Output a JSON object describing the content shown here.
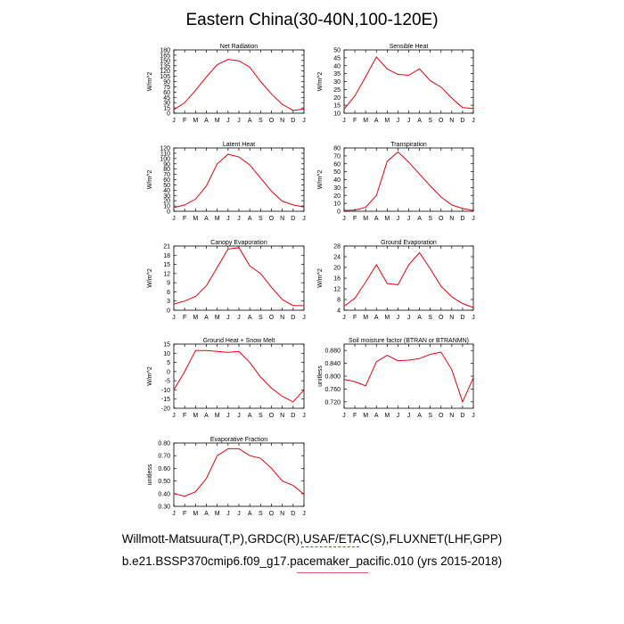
{
  "title": "Eastern China(30-40N,100-120E)",
  "footer": {
    "line1": "Willmott-Matsuura(T,P),GRDC(R),USAF/ETAC(S),FLUXNET(LHF,GPP)",
    "line2": "b.e21.BSSP370cmip6.f09_g17.pacemaker_pacific.010 (yrs 2015-2018)"
  },
  "colors": {
    "line": "#e8000b",
    "axis": "#000000",
    "underline1": "#3a4fd6",
    "underline2": "#e05a6a"
  },
  "chart_data": [
    {
      "type": "line",
      "title": "Net Radiation",
      "ylabel": "W/m^2",
      "categories": [
        "J",
        "F",
        "M",
        "A",
        "M",
        "J",
        "J",
        "A",
        "S",
        "O",
        "N",
        "D",
        "J"
      ],
      "ylim": [
        0,
        180
      ],
      "yticks": [
        0,
        15,
        30,
        45,
        60,
        75,
        90,
        105,
        120,
        135,
        150,
        165,
        180
      ],
      "yticklabels": [
        "0",
        "15",
        "30",
        "45",
        "60",
        "75",
        "90",
        "105",
        "120",
        "135",
        "150",
        "165",
        "180"
      ],
      "values": [
        10,
        30,
        65,
        103,
        138,
        153,
        149,
        131,
        90,
        55,
        25,
        8,
        12
      ]
    },
    {
      "type": "line",
      "title": "Sensible Heat",
      "ylabel": "W/m^2",
      "categories": [
        "J",
        "F",
        "M",
        "A",
        "M",
        "J",
        "J",
        "A",
        "S",
        "O",
        "N",
        "D",
        "J"
      ],
      "ylim": [
        10,
        50
      ],
      "yticks": [
        10,
        15,
        20,
        25,
        30,
        35,
        40,
        45,
        50
      ],
      "yticklabels": [
        "10",
        "15",
        "20",
        "25",
        "30",
        "35",
        "40",
        "45",
        "50"
      ],
      "values": [
        12.5,
        21,
        33,
        45.5,
        38,
        34.5,
        34,
        38,
        30.5,
        26.5,
        19.5,
        13.5,
        13
      ]
    },
    {
      "type": "line",
      "title": "Latent Heat",
      "ylabel": "W/m^2",
      "categories": [
        "J",
        "F",
        "M",
        "A",
        "M",
        "J",
        "J",
        "A",
        "S",
        "O",
        "N",
        "D",
        "J"
      ],
      "ylim": [
        0,
        120
      ],
      "yticks": [
        0,
        10,
        20,
        30,
        40,
        50,
        60,
        70,
        80,
        90,
        100,
        110,
        120
      ],
      "yticklabels": [
        "0",
        "10",
        "20",
        "30",
        "40",
        "50",
        "60",
        "70",
        "80",
        "90",
        "100",
        "110",
        "120"
      ],
      "values": [
        7,
        12,
        23,
        48,
        90,
        108,
        103,
        88,
        63,
        38,
        19,
        12,
        8
      ]
    },
    {
      "type": "line",
      "title": "Transpiration",
      "ylabel": "W/m^2",
      "categories": [
        "J",
        "F",
        "M",
        "A",
        "M",
        "J",
        "J",
        "A",
        "S",
        "O",
        "N",
        "D",
        "J"
      ],
      "ylim": [
        0,
        80
      ],
      "yticks": [
        0,
        10,
        20,
        30,
        40,
        50,
        60,
        70,
        80
      ],
      "yticklabels": [
        "0",
        "10",
        "20",
        "30",
        "40",
        "50",
        "60",
        "70",
        "80"
      ],
      "values": [
        1,
        1.5,
        5,
        20,
        63,
        75,
        62,
        47,
        32,
        18,
        8,
        3.5,
        1
      ]
    },
    {
      "type": "line",
      "title": "Canopy Evaporation",
      "ylabel": "W/m^2",
      "categories": [
        "J",
        "F",
        "M",
        "A",
        "M",
        "J",
        "J",
        "A",
        "S",
        "O",
        "N",
        "D",
        "J"
      ],
      "ylim": [
        0,
        21
      ],
      "yticks": [
        0,
        3,
        6,
        9,
        12,
        15,
        18,
        21
      ],
      "yticklabels": [
        "0",
        "3",
        "6",
        "9",
        "12",
        "15",
        "18",
        "21"
      ],
      "values": [
        2,
        3,
        4.5,
        8,
        14,
        20,
        20.5,
        14.5,
        12,
        7.5,
        3.5,
        1.5,
        1.5
      ]
    },
    {
      "type": "line",
      "title": "Ground Evaporation",
      "ylabel": "W/m^2",
      "categories": [
        "J",
        "F",
        "M",
        "A",
        "M",
        "J",
        "J",
        "A",
        "S",
        "O",
        "N",
        "D",
        "J"
      ],
      "ylim": [
        4,
        28
      ],
      "yticks": [
        4,
        8,
        12,
        16,
        20,
        24,
        28
      ],
      "yticklabels": [
        "4",
        "8",
        "12",
        "16",
        "20",
        "24",
        "28"
      ],
      "values": [
        5.5,
        8.5,
        14.5,
        21,
        14,
        13.5,
        21,
        25.5,
        19.5,
        13,
        9,
        6.5,
        5
      ]
    },
    {
      "type": "line",
      "title": "Ground Heat + Snow Melt",
      "ylabel": "W/m^2",
      "categories": [
        "J",
        "F",
        "M",
        "A",
        "M",
        "J",
        "J",
        "A",
        "S",
        "O",
        "N",
        "D",
        "J"
      ],
      "ylim": [
        -20,
        15
      ],
      "yticks": [
        -20,
        -15,
        -10,
        -5,
        0,
        5,
        10,
        15
      ],
      "yticklabels": [
        "-20",
        "-15",
        "-10",
        "-5",
        "0",
        "5",
        "10",
        "15"
      ],
      "values": [
        -10,
        0,
        11.5,
        11.5,
        11,
        10.5,
        11,
        5,
        -3,
        -9,
        -13.5,
        -16.5,
        -10
      ]
    },
    {
      "type": "line",
      "title": "Soil moisture factor (BTRAN or BTRANMN)",
      "ylabel": "unitless",
      "categories": [
        "J",
        "F",
        "M",
        "A",
        "M",
        "J",
        "J",
        "A",
        "S",
        "O",
        "N",
        "D",
        "J"
      ],
      "ylim": [
        0.7,
        0.9
      ],
      "yticks": [
        0.72,
        0.76,
        0.8,
        0.84,
        0.88
      ],
      "yticklabels": [
        "0.720",
        "0.760",
        "0.800",
        "0.840",
        "0.880"
      ],
      "values": [
        0.79,
        0.783,
        0.77,
        0.845,
        0.865,
        0.848,
        0.85,
        0.855,
        0.868,
        0.875,
        0.82,
        0.72,
        0.795
      ]
    },
    {
      "type": "line",
      "title": "Evaporative Fraction",
      "ylabel": "unitless",
      "categories": [
        "J",
        "F",
        "M",
        "A",
        "M",
        "J",
        "J",
        "A",
        "S",
        "O",
        "N",
        "D",
        "J"
      ],
      "ylim": [
        0.3,
        0.8
      ],
      "yticks": [
        0.3,
        0.4,
        0.5,
        0.6,
        0.7,
        0.8
      ],
      "yticklabels": [
        "0.30",
        "0.40",
        "0.50",
        "0.60",
        "0.70",
        "0.80"
      ],
      "values": [
        0.4,
        0.38,
        0.415,
        0.52,
        0.7,
        0.755,
        0.755,
        0.7,
        0.68,
        0.6,
        0.5,
        0.465,
        0.395
      ]
    }
  ]
}
